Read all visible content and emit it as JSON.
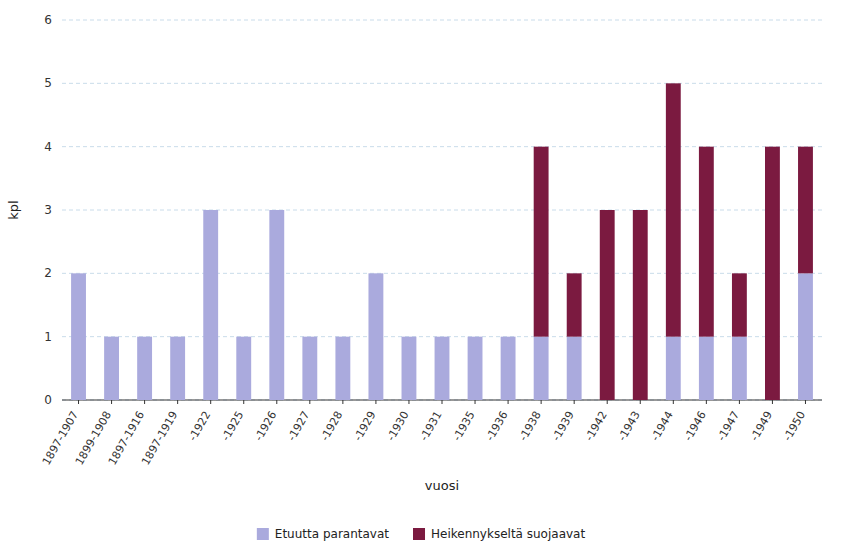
{
  "chart_data": {
    "type": "bar",
    "stacked": true,
    "xlabel": "vuosi",
    "ylabel": "kpl",
    "categories": [
      "1897-1907",
      "1899-1908",
      "1897-1916",
      "1897-1919",
      "-1922",
      "-1925",
      "-1926",
      "-1927",
      "-1928",
      "-1929",
      "-1930",
      "-1931",
      "-1935",
      "-1936",
      "-1938",
      "-1939",
      "-1942",
      "-1943",
      "-1944",
      "-1946",
      "-1947",
      "-1949",
      "-1950"
    ],
    "series": [
      {
        "name": "Etuutta parantavat",
        "color": "#aaaadd",
        "values": [
          2,
          1,
          1,
          1,
          3,
          1,
          3,
          1,
          1,
          2,
          1,
          1,
          1,
          1,
          1,
          1,
          0,
          0,
          1,
          1,
          1,
          0,
          2
        ]
      },
      {
        "name": "Heikennykseltä suojaavat",
        "color": "#7b1a40",
        "values": [
          0,
          0,
          0,
          0,
          0,
          0,
          0,
          0,
          0,
          0,
          0,
          0,
          0,
          0,
          3,
          1,
          3,
          3,
          4,
          3,
          1,
          4,
          2
        ]
      }
    ],
    "ylim": [
      0,
      6
    ],
    "yticks": [
      0,
      1,
      2,
      3,
      4,
      5,
      6
    ],
    "grid": true,
    "legend": "bottom"
  }
}
